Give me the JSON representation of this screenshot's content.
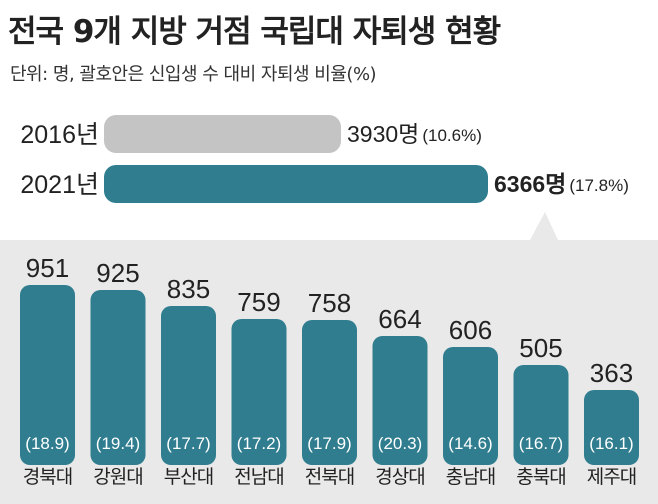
{
  "title": "전국 9개 지방 거점 국립대 자퇴생 현황",
  "subtitle": "단위: 명, 괄호안은 신입생 수 대비 자퇴생 비율(%)",
  "colors": {
    "accent": "#2f7d8f",
    "muted": "#c4c4c4",
    "panel": "#e9e9e9",
    "text": "#222222"
  },
  "chart_data": [
    {
      "type": "bar",
      "orientation": "horizontal",
      "categories": [
        "2016년",
        "2021년"
      ],
      "values": [
        3930,
        6366
      ],
      "value_labels": [
        "3930명",
        "6366명"
      ],
      "ratio_labels": [
        "(10.6%)",
        "(17.8%)"
      ],
      "ratios": [
        10.6,
        17.8
      ],
      "xlim": [
        0,
        6366
      ]
    },
    {
      "type": "bar",
      "orientation": "vertical",
      "categories": [
        "경북대",
        "강원대",
        "부산대",
        "전남대",
        "전북대",
        "경상대",
        "충남대",
        "충북대",
        "제주대"
      ],
      "values": [
        951,
        925,
        835,
        759,
        758,
        664,
        606,
        505,
        363
      ],
      "ratio_labels": [
        "(18.9)",
        "(19.4)",
        "(17.7)",
        "(17.2)",
        "(17.9)",
        "(20.3)",
        "(14.6)",
        "(16.7)",
        "(16.1)"
      ],
      "ratios": [
        18.9,
        19.4,
        17.7,
        17.2,
        17.9,
        20.3,
        14.6,
        16.7,
        16.1
      ],
      "ylim": [
        0,
        951
      ]
    }
  ]
}
